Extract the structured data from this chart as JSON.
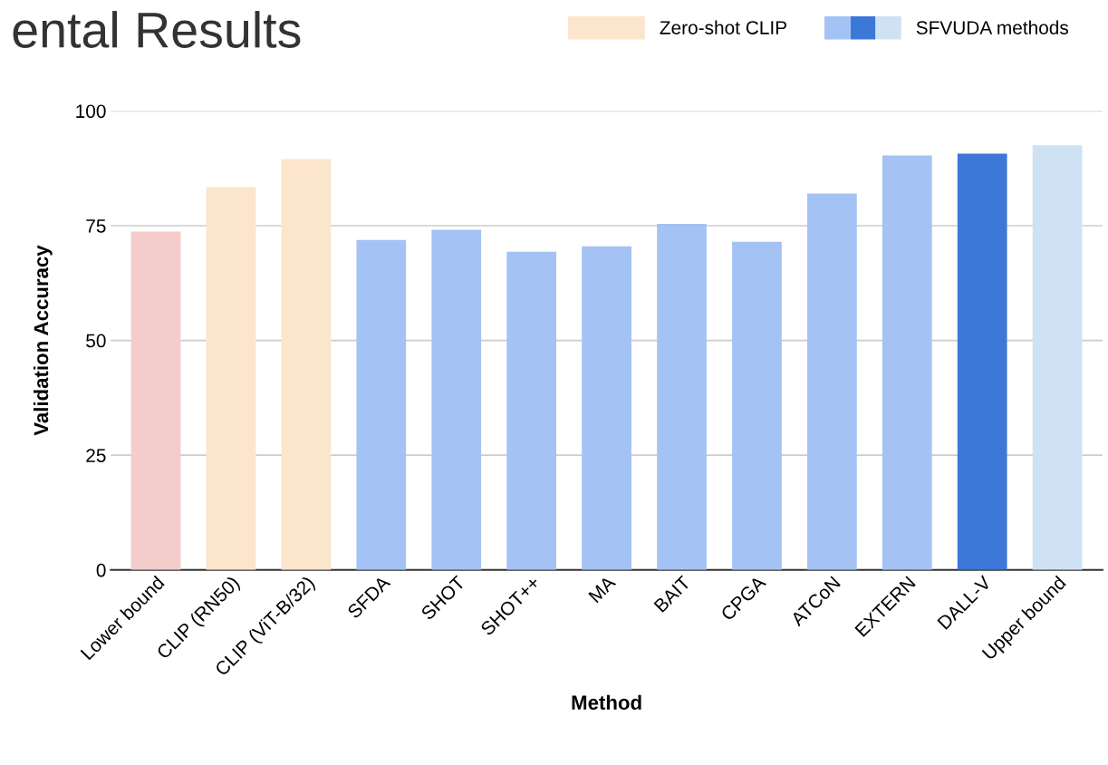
{
  "chart_data": {
    "type": "bar",
    "title": "ental Results",
    "xlabel": "Method",
    "ylabel": "Validation Accuracy",
    "categories": [
      "Lower bound",
      "CLIP (RN50)",
      "CLIP (ViT-B/32)",
      "SFDA",
      "SHOT",
      "SHOT++",
      "MA",
      "BAIT",
      "CPGA",
      "ATCoN",
      "EXTERN",
      "DALL-V",
      "Upper bound"
    ],
    "series": [
      {
        "color": "#f4cccc",
        "values": [
          73.7,
          null,
          null,
          null,
          null,
          null,
          null,
          null,
          null,
          null,
          null,
          null,
          null
        ]
      },
      {
        "name": "Zero-shot CLIP",
        "color": "#fce5cd",
        "values": [
          null,
          83.4,
          89.5,
          null,
          null,
          null,
          null,
          null,
          null,
          null,
          null,
          null,
          null
        ]
      },
      {
        "name": "SFVUDA methods",
        "colors": [
          null,
          null,
          null,
          "#a4c2f4",
          "#a4c2f4",
          "#a4c2f4",
          "#a4c2f4",
          "#a4c2f4",
          "#a4c2f4",
          "#a4c2f4",
          "#a4c2f4",
          "#3c78d8",
          "#cfe2f3"
        ],
        "values": [
          null,
          null,
          null,
          71.9,
          74.1,
          69.3,
          70.5,
          75.4,
          71.5,
          82.0,
          90.3,
          90.7,
          92.5
        ]
      }
    ],
    "ylim": [
      0,
      100
    ],
    "yticks": [
      0,
      25,
      50,
      75,
      100
    ],
    "grid": "y",
    "legend": "top right"
  }
}
